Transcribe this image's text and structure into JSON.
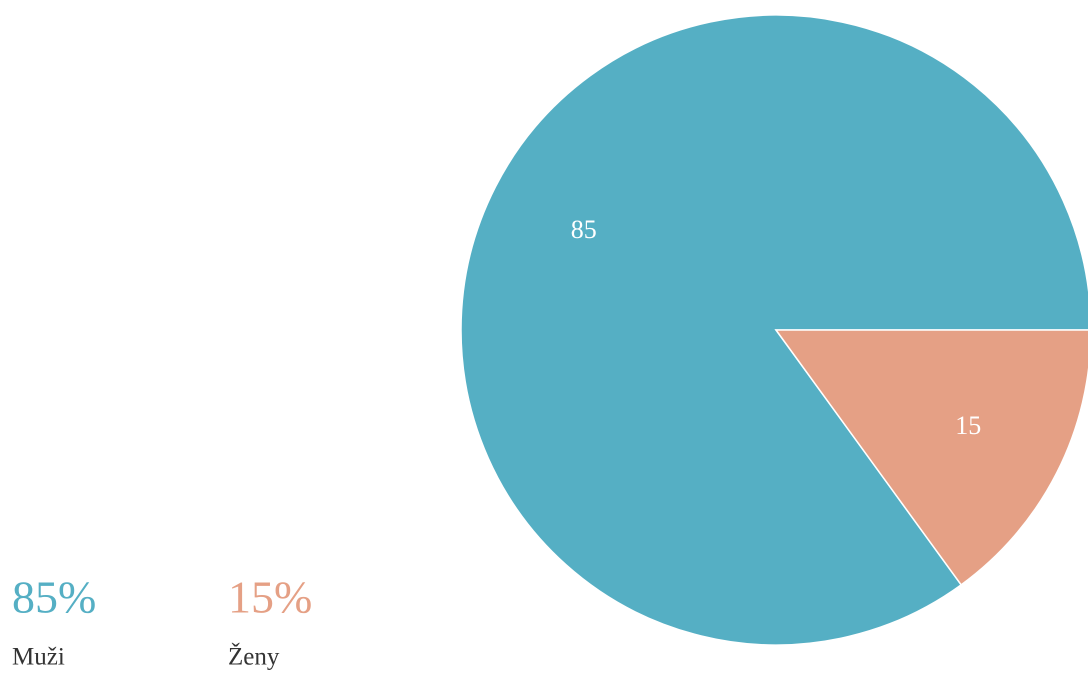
{
  "chart_data": {
    "type": "pie",
    "categories": [
      "Muži",
      "Ženy"
    ],
    "values": [
      85,
      15
    ],
    "value_labels": [
      "85%",
      "15%"
    ],
    "colors": [
      "#55afc4",
      "#e5a085"
    ]
  }
}
